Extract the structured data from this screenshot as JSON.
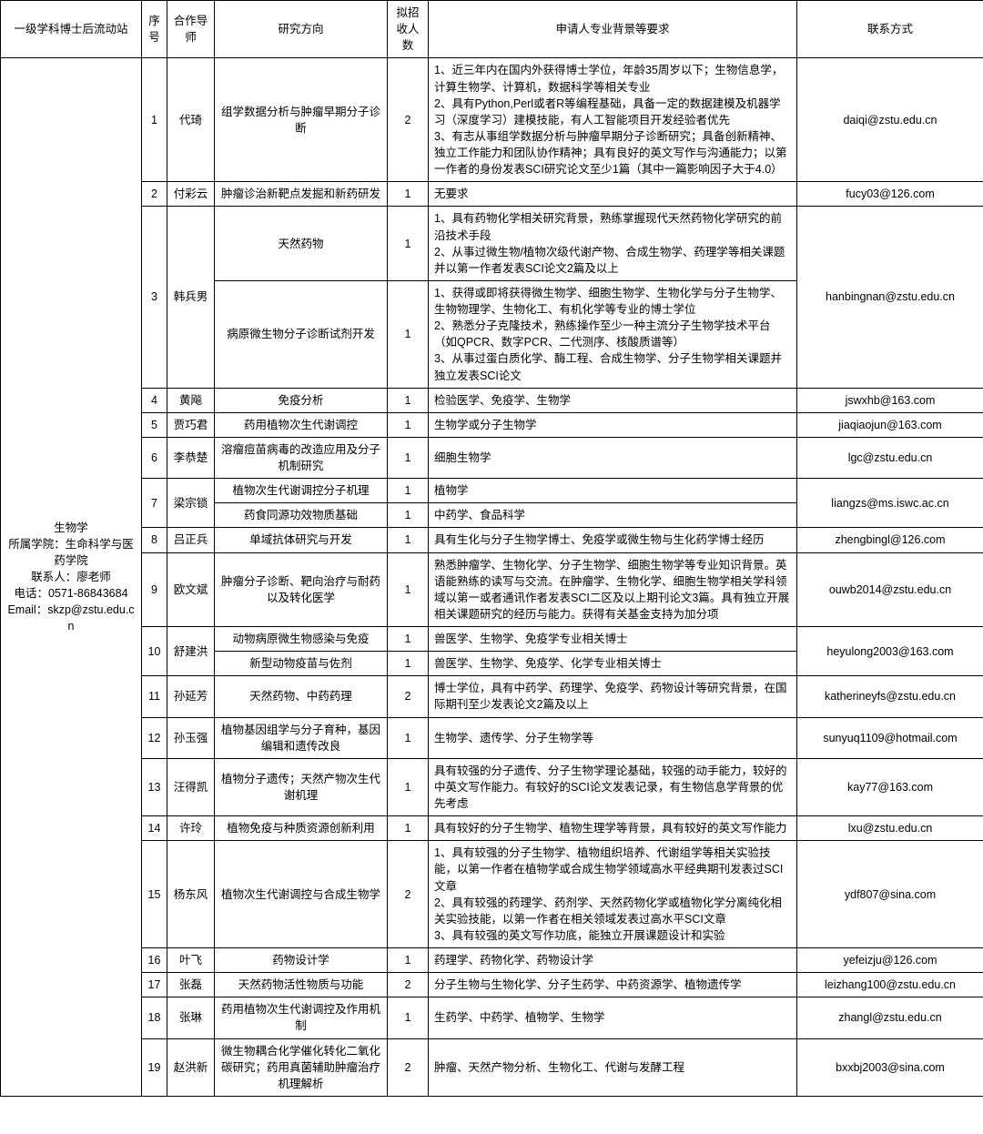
{
  "headers": {
    "station": "一级学科博士后流动站",
    "idx": "序号",
    "advisor": "合作导师",
    "direction": "研究方向",
    "quota": "拟招收人数",
    "requirement": "申请人专业背景等要求",
    "contact": "联系方式"
  },
  "station_block": "生物学\n所属学院：生命科学与医药学院\n联系人：廖老师\n电话：0571-86843684\nEmail：skzp@zstu.edu.cn",
  "r1": {
    "idx": "1",
    "advisor": "代琦",
    "direction": "组学数据分析与肿瘤早期分子诊断",
    "quota": "2",
    "requirement": "1、近三年内在国内外获得博士学位，年龄35周岁以下；生物信息学，计算生物学、计算机，数据科学等相关专业\n2、具有Python,Perl或者R等编程基础，具备一定的数据建模及机器学习（深度学习）建模技能，有人工智能项目开发经验者优先\n3、有志从事组学数据分析与肿瘤早期分子诊断研究；具备创新精神、独立工作能力和团队协作精神；具有良好的英文写作与沟通能力；以第一作者的身份发表SCI研究论文至少1篇（其中一篇影响因子大于4.0）",
    "contact": "daiqi@zstu.edu.cn"
  },
  "r2": {
    "idx": "2",
    "advisor": "付彩云",
    "direction": "肿瘤诊治新靶点发掘和新药研发",
    "quota": "1",
    "requirement": "无要求",
    "contact": "fucy03@126.com"
  },
  "r3a": {
    "idx": "3",
    "advisor": "韩兵男",
    "direction": "天然药物",
    "quota": "1",
    "requirement": "1、具有药物化学相关研究背景，熟练掌握现代天然药物化学研究的前沿技术手段\n2、从事过微生物/植物次级代谢产物、合成生物学、药理学等相关课题并以第一作者发表SCI论文2篇及以上",
    "contact": "hanbingnan@zstu.edu.cn"
  },
  "r3b": {
    "direction": "病原微生物分子诊断试剂开发",
    "quota": "1",
    "requirement": "1、获得或即将获得微生物学、细胞生物学、生物化学与分子生物学、生物物理学、生物化工、有机化学等专业的博士学位\n2、熟悉分子克隆技术，熟练操作至少一种主流分子生物学技术平台（如QPCR、数字PCR、二代测序、核酸质谱等）\n3、从事过蛋白质化学、酶工程、合成生物学、分子生物学相关课题并独立发表SCI论文"
  },
  "r4": {
    "idx": "4",
    "advisor": "黄飚",
    "direction": "免疫分析",
    "quota": "1",
    "requirement": "检验医学、免疫学、生物学",
    "contact": "jswxhb@163.com"
  },
  "r5": {
    "idx": "5",
    "advisor": "贾巧君",
    "direction": "药用植物次生代谢调控",
    "quota": "1",
    "requirement": "生物学或分子生物学",
    "contact": "jiaqiaojun@163.com"
  },
  "r6": {
    "idx": "6",
    "advisor": "李恭楚",
    "direction": "溶瘤痘苗病毒的改造应用及分子机制研究",
    "quota": "1",
    "requirement": "细胞生物学",
    "contact": "lgc@zstu.edu.cn"
  },
  "r7a": {
    "idx": "7",
    "advisor": "梁宗锁",
    "direction": "植物次生代谢调控分子机理",
    "quota": "1",
    "requirement": "植物学",
    "contact": "liangzs@ms.iswc.ac.cn"
  },
  "r7b": {
    "direction": "药食同源功效物质基础",
    "quota": "1",
    "requirement": "中药学、食品科学"
  },
  "r8": {
    "idx": "8",
    "advisor": "吕正兵",
    "direction": "单域抗体研究与开发",
    "quota": "1",
    "requirement": "具有生化与分子生物学博士、免疫学或微生物与生化药学博士经历",
    "contact": "zhengbingl@126.com"
  },
  "r9": {
    "idx": "9",
    "advisor": "欧文斌",
    "direction": "肿瘤分子诊断、靶向治疗与耐药以及转化医学",
    "quota": "1",
    "requirement": "熟悉肿瘤学、生物化学、分子生物学、细胞生物学等专业知识背景。英语能熟练的读写与交流。在肿瘤学、生物化学、细胞生物学相关学科领域以第一或者通讯作者发表SCI二区及以上期刊论文3篇。具有独立开展相关课题研究的经历与能力。获得有关基金支持为加分项",
    "contact": "ouwb2014@zstu.edu.cn"
  },
  "r10a": {
    "idx": "10",
    "advisor": "舒建洪",
    "direction": "动物病原微生物感染与免疫",
    "quota": "1",
    "requirement": "兽医学、生物学、免疫学专业相关博士",
    "contact": "heyulong2003@163.com"
  },
  "r10b": {
    "direction": "新型动物疫苗与佐剂",
    "quota": "1",
    "requirement": "兽医学、生物学、免疫学、化学专业相关博士"
  },
  "r11": {
    "idx": "11",
    "advisor": "孙延芳",
    "direction": "天然药物、中药药理",
    "quota": "2",
    "requirement": "博士学位，具有中药学、药理学、免疫学、药物设计等研究背景，在国际期刊至少发表论文2篇及以上",
    "contact": "katherineyfs@zstu.edu.cn"
  },
  "r12": {
    "idx": "12",
    "advisor": "孙玉强",
    "direction": "植物基因组学与分子育种，基因编辑和遗传改良",
    "quota": "1",
    "requirement": "生物学、遗传学、分子生物学等",
    "contact": "sunyuq1109@hotmail.com"
  },
  "r13": {
    "idx": "13",
    "advisor": "汪得凯",
    "direction": "植物分子遗传；天然产物次生代谢机理",
    "quota": "1",
    "requirement": "具有较强的分子遗传、分子生物学理论基础，较强的动手能力，较好的中英文写作能力。有较好的SCI论文发表记录，有生物信息学背景的优先考虑",
    "contact": "kay77@163.com"
  },
  "r14": {
    "idx": "14",
    "advisor": "许玲",
    "direction": "植物免疫与种质资源创新利用",
    "quota": "1",
    "requirement": "具有较好的分子生物学、植物生理学等背景，具有较好的英文写作能力",
    "contact": "lxu@zstu.edu.cn"
  },
  "r15": {
    "idx": "15",
    "advisor": "杨东风",
    "direction": "植物次生代谢调控与合成生物学",
    "quota": "2",
    "requirement": "1、具有较强的分子生物学、植物组织培养、代谢组学等相关实验技能，以第一作者在植物学或合成生物学领域高水平经典期刊发表过SCI文章\n2、具有较强的药理学、药剂学、天然药物化学或植物化学分离纯化相关实验技能，以第一作者在相关领域发表过高水平SCI文章\n3、具有较强的英文写作功底，能独立开展课题设计和实验",
    "contact": "ydf807@sina.com"
  },
  "r16": {
    "idx": "16",
    "advisor": "叶飞",
    "direction": "药物设计学",
    "quota": "1",
    "requirement": "药理学、药物化学、药物设计学",
    "contact": "yefeizju@126.com"
  },
  "r17": {
    "idx": "17",
    "advisor": "张磊",
    "direction": "天然药物活性物质与功能",
    "quota": "2",
    "requirement": "分子生物与生物化学、分子生药学、中药资源学、植物遗传学",
    "contact": "leizhang100@zstu.edu.cn"
  },
  "r18": {
    "idx": "18",
    "advisor": "张琳",
    "direction": "药用植物次生代谢调控及作用机制",
    "quota": "1",
    "requirement": "生药学、中药学、植物学、生物学",
    "contact": "zhangl@zstu.edu.cn"
  },
  "r19": {
    "idx": "19",
    "advisor": "赵洪新",
    "direction": "微生物耦合化学催化转化二氧化碳研究；药用真菌辅助肿瘤治疗机理解析",
    "quota": "2",
    "requirement": "肿瘤、天然产物分析、生物化工、代谢与发酵工程",
    "contact": "bxxbj2003@sina.com"
  }
}
